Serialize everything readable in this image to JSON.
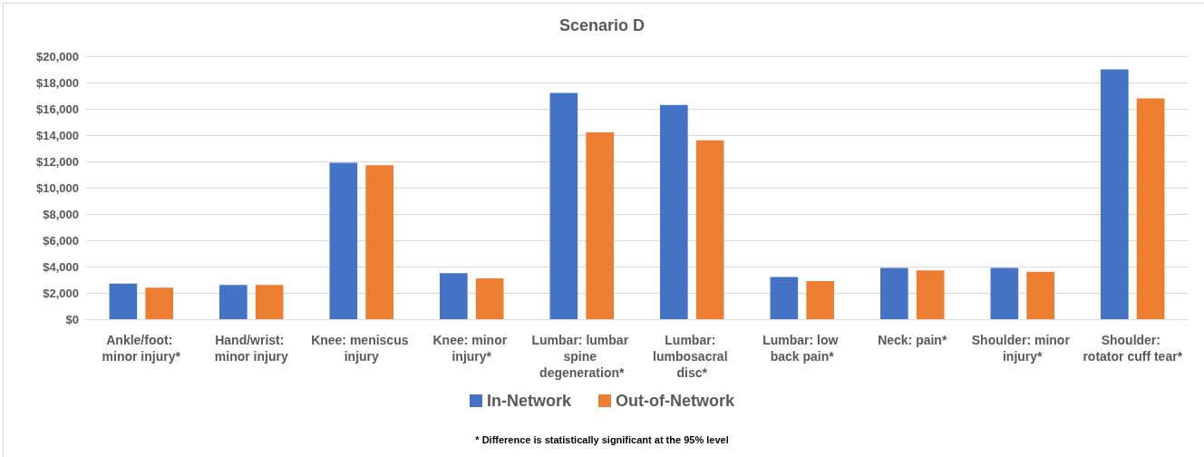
{
  "chart_data": {
    "type": "bar",
    "title": "Scenario D",
    "categories": [
      "Ankle/foot: minor injury*",
      "Hand/wrist: minor injury",
      "Knee: meniscus injury",
      "Knee: minor injury*",
      "Lumbar: lumbar spine degeneration*",
      "Lumbar: lumbosacral disc*",
      "Lumbar: low back pain*",
      "Neck: pain*",
      "Shoulder: minor injury*",
      "Shoulder: rotator cuff tear*"
    ],
    "series": [
      {
        "name": "In-Network",
        "color": "#4472c4",
        "values": [
          2700,
          2600,
          11900,
          3500,
          17200,
          16300,
          3200,
          3900,
          3900,
          19000
        ]
      },
      {
        "name": "Out-of-Network",
        "color": "#ed7d31",
        "values": [
          2400,
          2600,
          11700,
          3100,
          14200,
          13600,
          2900,
          3700,
          3600,
          16800
        ]
      }
    ],
    "ylim": [
      0,
      20000
    ],
    "yticks": [
      {
        "value": 0,
        "label": "$0"
      },
      {
        "value": 2000,
        "label": "$2,000"
      },
      {
        "value": 4000,
        "label": "$4,000"
      },
      {
        "value": 6000,
        "label": "$6,000"
      },
      {
        "value": 8000,
        "label": "$8,000"
      },
      {
        "value": 10000,
        "label": "$10,000"
      },
      {
        "value": 12000,
        "label": "$12,000"
      },
      {
        "value": 14000,
        "label": "$14,000"
      },
      {
        "value": 16000,
        "label": "$16,000"
      },
      {
        "value": 18000,
        "label": "$18,000"
      },
      {
        "value": 20000,
        "label": "$20,000"
      }
    ],
    "grid": "y",
    "legend": "bottom",
    "annotations": [
      "* Difference is statistically significant at the 95% level"
    ]
  }
}
